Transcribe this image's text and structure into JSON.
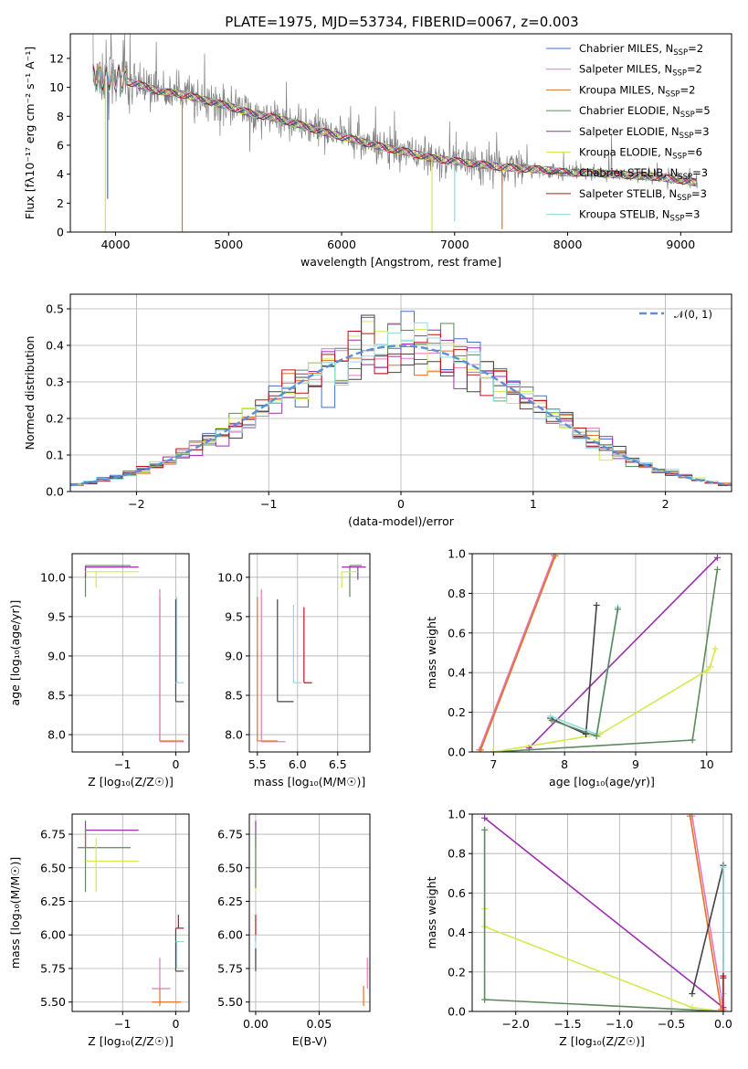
{
  "figure": {
    "title": "PLATE=1975, MJD=53734, FIBERID=0067, z=0.003"
  },
  "colors": {
    "chabrier_miles": "#4472c4",
    "salpeter_miles": "#e377c2",
    "kroupa_miles": "#e37222",
    "chabrier_elodie": "#5c8a5c",
    "salpeter_elodie": "#9b2fae",
    "kroupa_elodie": "#d4e94a",
    "chabrier_stelib": "#444444",
    "salpeter_stelib": "#c0101a",
    "kroupa_stelib": "#8fdce0",
    "data": "#808080",
    "normal": "#5b8fd6"
  },
  "chart_data": [
    {
      "id": "spectrum",
      "type": "line",
      "title": "PLATE=1975, MJD=53734, FIBERID=0067, z=0.003",
      "xlabel": "wavelength [Angstrom, rest frame]",
      "ylabel": "Flux [fλ10⁻¹⁷ erg cm⁻² s⁻¹ A⁻¹]",
      "xlim": [
        3600,
        9450
      ],
      "ylim": [
        0,
        13.7
      ],
      "xticks": [
        4000,
        5000,
        6000,
        7000,
        8000,
        9000
      ],
      "yticks": [
        0,
        2,
        4,
        6,
        8,
        10,
        12
      ],
      "grid": false,
      "legend_position": "top-right",
      "legend": [
        {
          "base": "Chabrier MILES, N",
          "sub": "SSP",
          "tail": "=2",
          "color": "chabrier_miles"
        },
        {
          "base": "Salpeter MILES, N",
          "sub": "SSP",
          "tail": "=2",
          "color": "salpeter_miles"
        },
        {
          "base": "Kroupa MILES, N",
          "sub": "SSP",
          "tail": "=2",
          "color": "kroupa_miles"
        },
        {
          "base": "Chabrier ELODIE, N",
          "sub": "SSP",
          "tail": "=5",
          "color": "chabrier_elodie"
        },
        {
          "base": "Salpeter ELODIE, N",
          "sub": "SSP",
          "tail": "=3",
          "color": "salpeter_elodie"
        },
        {
          "base": "Kroupa ELODIE, N",
          "sub": "SSP",
          "tail": "=6",
          "color": "kroupa_elodie"
        },
        {
          "base": "Chabrier STELIB, N",
          "sub": "SSP",
          "tail": "=3",
          "color": "chabrier_stelib"
        },
        {
          "base": "Salpeter STELIB, N",
          "sub": "SSP",
          "tail": "=3",
          "color": "salpeter_stelib"
        },
        {
          "base": "Kroupa STELIB, N",
          "sub": "SSP",
          "tail": "=3",
          "color": "kroupa_stelib"
        }
      ],
      "continuum": [
        [
          3800,
          10.6
        ],
        [
          3900,
          10.8
        ],
        [
          4000,
          10.6
        ],
        [
          4200,
          10.2
        ],
        [
          4400,
          9.7
        ],
        [
          4600,
          9.5
        ],
        [
          4800,
          9.1
        ],
        [
          5000,
          8.7
        ],
        [
          5200,
          8.2
        ],
        [
          5400,
          7.9
        ],
        [
          5600,
          7.5
        ],
        [
          5800,
          7.0
        ],
        [
          6000,
          6.6
        ],
        [
          6200,
          6.2
        ],
        [
          6400,
          5.8
        ],
        [
          6600,
          5.5
        ],
        [
          6800,
          5.1
        ],
        [
          7000,
          4.9
        ],
        [
          7200,
          4.7
        ],
        [
          7400,
          4.5
        ],
        [
          7600,
          4.4
        ],
        [
          7800,
          4.3
        ],
        [
          8000,
          4.1
        ],
        [
          8200,
          4.1
        ],
        [
          8400,
          4.0
        ],
        [
          8600,
          3.9
        ],
        [
          8800,
          3.8
        ],
        [
          9000,
          3.6
        ],
        [
          9150,
          3.4
        ]
      ],
      "spikes": [
        {
          "x": 3910,
          "y": 0,
          "color": "kroupa_elodie"
        },
        {
          "x": 3930,
          "y": 2.3,
          "color": "chabrier_miles"
        },
        {
          "x": 4590,
          "y": 0,
          "color": "kroupa_miles"
        },
        {
          "x": 6800,
          "y": 0,
          "color": "kroupa_elodie"
        },
        {
          "x": 7000,
          "y": 0.7,
          "color": "kroupa_stelib"
        },
        {
          "x": 7420,
          "y": 0.2,
          "color": "kroupa_miles"
        }
      ]
    },
    {
      "id": "residuals",
      "type": "bar",
      "xlabel": "(data-model)/error",
      "ylabel": "Normed distribution",
      "xlim": [
        -2.5,
        2.5
      ],
      "ylim": [
        0,
        0.54
      ],
      "xticks": [
        -2,
        -1,
        0,
        1,
        2
      ],
      "xtick_labels": [
        "−2",
        "−1",
        "0",
        "1",
        "2"
      ],
      "yticks": [
        0,
        0.1,
        0.2,
        0.3,
        0.4,
        0.5
      ],
      "ytick_labels": [
        "0.0",
        "0.1",
        "0.2",
        "0.3",
        "0.4",
        "0.5"
      ],
      "grid": true,
      "legend_position": "top-right",
      "legend_label": "𝒩(0, 1)",
      "bin_width": 0.1,
      "normal": {
        "mu": 0,
        "sigma": 1
      },
      "series_colors": [
        "chabrier_miles",
        "salpeter_miles",
        "kroupa_miles",
        "chabrier_elodie",
        "salpeter_elodie",
        "kroupa_elodie",
        "chabrier_stelib",
        "salpeter_stelib",
        "kroupa_stelib"
      ]
    },
    {
      "id": "age_vs_Z",
      "type": "scatter",
      "xlabel": "Z [log₁₀(Z/Z☉)]",
      "ylabel": "age  [log₁₀(age/yr)]",
      "xlim": [
        -1.95,
        0.25
      ],
      "ylim": [
        7.78,
        10.3
      ],
      "xticks": [
        -1,
        0
      ],
      "xtick_labels": [
        "−1",
        "0"
      ],
      "yticks": [
        8.0,
        8.5,
        9.0,
        9.5,
        10.0
      ],
      "ytick_labels": [
        "8.0",
        "8.5",
        "9.0",
        "9.5",
        "10.0"
      ],
      "grid": true,
      "errorbars": [
        {
          "x": -1.7,
          "y": 10.15,
          "x0": -1.7,
          "x1": -0.85,
          "y0": 9.75,
          "y1": 10.15,
          "color": "chabrier_elodie"
        },
        {
          "x": -1.7,
          "y": 10.13,
          "x0": -1.7,
          "x1": -0.7,
          "y0": 10.0,
          "y1": 10.13,
          "color": "salpeter_elodie"
        },
        {
          "x": -1.5,
          "y": 10.07,
          "x0": -1.7,
          "x1": -0.7,
          "y0": 9.87,
          "y1": 10.07,
          "color": "kroupa_elodie"
        },
        {
          "x": -0.3,
          "y": 7.92,
          "x0": -0.3,
          "x1": 0.15,
          "y0": 7.92,
          "y1": 9.75,
          "color": "kroupa_miles"
        },
        {
          "x": -0.3,
          "y": 7.91,
          "x0": -0.3,
          "x1": 0.15,
          "y0": 7.91,
          "y1": 9.85,
          "color": "salpeter_miles"
        },
        {
          "x": 0.0,
          "y": 8.42,
          "x0": 0.0,
          "x1": 0.15,
          "y0": 8.42,
          "y1": 9.72,
          "color": "chabrier_stelib"
        },
        {
          "x": 0.02,
          "y": 8.66,
          "x0": 0.0,
          "x1": 0.15,
          "y0": 8.66,
          "y1": 9.75,
          "color": "kroupa_stelib"
        }
      ]
    },
    {
      "id": "age_vs_mass",
      "type": "scatter",
      "xlabel": "mass [log₁₀(M/M☉)]",
      "ylabel": "",
      "xlim": [
        5.4,
        6.9
      ],
      "ylim": [
        7.78,
        10.3
      ],
      "xticks": [
        5.5,
        6.0,
        6.5
      ],
      "xtick_labels": [
        "5.5",
        "6.0",
        "6.5"
      ],
      "yticks": [
        8.0,
        8.5,
        9.0,
        9.5,
        10.0
      ],
      "ytick_labels": [
        "8.0",
        "8.5",
        "9.0",
        "9.5",
        "10.0"
      ],
      "grid": true,
      "errorbars": [
        {
          "x": 6.65,
          "y": 10.15,
          "x0": 6.65,
          "x1": 6.8,
          "y0": 9.75,
          "y1": 10.15,
          "color": "chabrier_elodie"
        },
        {
          "x": 6.75,
          "y": 10.13,
          "x0": 6.55,
          "x1": 6.85,
          "y0": 9.97,
          "y1": 10.13,
          "color": "salpeter_elodie"
        },
        {
          "x": 6.55,
          "y": 10.07,
          "x0": 6.55,
          "x1": 6.75,
          "y0": 9.87,
          "y1": 10.07,
          "color": "kroupa_elodie"
        },
        {
          "x": 5.5,
          "y": 7.92,
          "x0": 5.5,
          "x1": 5.75,
          "y0": 7.92,
          "y1": 9.75,
          "color": "kroupa_miles"
        },
        {
          "x": 5.55,
          "y": 7.91,
          "x0": 5.55,
          "x1": 5.85,
          "y0": 7.91,
          "y1": 9.85,
          "color": "salpeter_miles"
        },
        {
          "x": 5.75,
          "y": 8.42,
          "x0": 5.75,
          "x1": 5.95,
          "y0": 8.42,
          "y1": 9.72,
          "color": "chabrier_stelib"
        },
        {
          "x": 5.95,
          "y": 8.66,
          "x0": 5.95,
          "x1": 6.05,
          "y0": 8.66,
          "y1": 9.65,
          "color": "kroupa_stelib"
        },
        {
          "x": 6.08,
          "y": 8.66,
          "x0": 6.08,
          "x1": 6.18,
          "y0": 8.66,
          "y1": 9.62,
          "color": "salpeter_stelib"
        }
      ]
    },
    {
      "id": "weight_vs_age",
      "type": "line",
      "xlabel": "age  [log₁₀(age/yr)]",
      "ylabel": "mass weight",
      "xlim": [
        6.7,
        10.35
      ],
      "ylim": [
        0,
        1.0
      ],
      "xticks": [
        7,
        8,
        9,
        10
      ],
      "xtick_labels": [
        "7",
        "8",
        "9",
        "10"
      ],
      "yticks": [
        0,
        0.2,
        0.4,
        0.6,
        0.8,
        1.0
      ],
      "ytick_labels": [
        "0.0",
        "0.2",
        "0.4",
        "0.6",
        "0.8",
        "1.0"
      ],
      "grid": true,
      "series": [
        {
          "color": "salpeter_miles",
          "points": [
            [
              6.8,
              0.01
            ],
            [
              7.85,
              0.99
            ]
          ]
        },
        {
          "color": "kroupa_miles",
          "points": [
            [
              6.82,
              0.01
            ],
            [
              7.87,
              0.99
            ]
          ]
        },
        {
          "color": "salpeter_elodie",
          "points": [
            [
              7.5,
              0.02
            ],
            [
              10.15,
              0.98
            ]
          ]
        },
        {
          "color": "chabrier_elodie",
          "points": [
            [
              7.0,
              0.0
            ],
            [
              9.8,
              0.06
            ],
            [
              10.15,
              0.92
            ]
          ]
        },
        {
          "color": "kroupa_elodie",
          "points": [
            [
              7.0,
              0.0
            ],
            [
              8.5,
              0.09
            ],
            [
              10.0,
              0.41
            ],
            [
              10.05,
              0.43
            ],
            [
              10.12,
              0.52
            ]
          ]
        },
        {
          "color": "chabrier_stelib",
          "points": [
            [
              8.3,
              0.09
            ],
            [
              8.45,
              0.74
            ]
          ]
        },
        {
          "color": "chabrier_stelib",
          "points": [
            [
              7.8,
              0.17
            ],
            [
              8.3,
              0.09
            ]
          ]
        },
        {
          "color": "kroupa_stelib",
          "points": [
            [
              7.8,
              0.18
            ],
            [
              8.45,
              0.09
            ],
            [
              8.75,
              0.73
            ]
          ]
        },
        {
          "color": "chabrier_elodie",
          "points": [
            [
              7.82,
              0.16
            ],
            [
              8.45,
              0.08
            ],
            [
              8.75,
              0.72
            ]
          ]
        }
      ]
    },
    {
      "id": "mass_vs_Z",
      "type": "scatter",
      "xlabel": "Z [log₁₀(Z/Z☉)]",
      "ylabel": "mass [log₁₀(M/M☉)]",
      "xlim": [
        -1.95,
        0.25
      ],
      "ylim": [
        5.43,
        6.9
      ],
      "xticks": [
        -1,
        0
      ],
      "xtick_labels": [
        "−1",
        "0"
      ],
      "yticks": [
        5.5,
        5.75,
        6.0,
        6.25,
        6.5,
        6.75
      ],
      "ytick_labels": [
        "5.50",
        "5.75",
        "6.00",
        "6.25",
        "6.50",
        "6.75"
      ],
      "grid": true,
      "errorbars": [
        {
          "x": -1.7,
          "y": 6.78,
          "x0": -1.7,
          "x1": -0.7,
          "y0": 6.65,
          "y1": 6.85,
          "color": "salpeter_elodie"
        },
        {
          "x": -1.7,
          "y": 6.65,
          "x0": -1.85,
          "x1": -0.85,
          "y0": 6.32,
          "y1": 6.8,
          "color": "chabrier_elodie"
        },
        {
          "x": -1.5,
          "y": 6.55,
          "x0": -1.7,
          "x1": -0.7,
          "y0": 6.32,
          "y1": 6.72,
          "color": "kroupa_elodie"
        },
        {
          "x": -0.3,
          "y": 5.6,
          "x0": -0.45,
          "x1": -0.1,
          "y0": 5.6,
          "y1": 5.83,
          "color": "salpeter_miles"
        },
        {
          "x": -0.3,
          "y": 5.5,
          "x0": -0.45,
          "x1": 0.1,
          "y0": 5.47,
          "y1": 5.6,
          "color": "kroupa_miles"
        },
        {
          "x": 0.0,
          "y": 5.73,
          "x0": 0.0,
          "x1": 0.15,
          "y0": 5.73,
          "y1": 6.05,
          "color": "chabrier_stelib"
        },
        {
          "x": 0.02,
          "y": 5.95,
          "x0": 0.0,
          "x1": 0.15,
          "y0": 5.75,
          "y1": 5.95,
          "color": "kroupa_stelib"
        },
        {
          "x": 0.05,
          "y": 6.05,
          "x0": 0.0,
          "x1": 0.15,
          "y0": 6.05,
          "y1": 6.15,
          "color": "salpeter_stelib"
        }
      ]
    },
    {
      "id": "mass_vs_EBV",
      "type": "scatter",
      "xlabel": "E(B-V)",
      "ylabel": "",
      "xlim": [
        -0.005,
        0.09
      ],
      "ylim": [
        5.43,
        6.9
      ],
      "xticks": [
        0.0,
        0.05
      ],
      "xtick_labels": [
        "0.00",
        "0.05"
      ],
      "yticks": [
        5.5,
        5.75,
        6.0,
        6.25,
        6.5,
        6.75
      ],
      "ytick_labels": [
        "5.50",
        "5.75",
        "6.00",
        "6.25",
        "6.50",
        "6.75"
      ],
      "grid": true,
      "errorbars": [
        {
          "x": 0.0,
          "y": 6.78,
          "y0": 6.65,
          "y1": 6.85,
          "color": "salpeter_elodie"
        },
        {
          "x": 0.0,
          "y": 6.55,
          "y0": 6.32,
          "y1": 6.72,
          "color": "kroupa_elodie"
        },
        {
          "x": 0.0,
          "y": 6.65,
          "y0": 6.35,
          "y1": 6.75,
          "color": "chabrier_elodie"
        },
        {
          "x": 0.0,
          "y": 6.05,
          "y0": 5.95,
          "y1": 6.15,
          "color": "salpeter_stelib"
        },
        {
          "x": 0.0,
          "y": 5.9,
          "y0": 5.75,
          "y1": 6.0,
          "color": "kroupa_stelib"
        },
        {
          "x": 0.0,
          "y": 5.8,
          "y0": 5.73,
          "y1": 5.9,
          "color": "chabrier_stelib"
        },
        {
          "x": 0.088,
          "y": 5.7,
          "y0": 5.6,
          "y1": 5.83,
          "color": "salpeter_miles"
        },
        {
          "x": 0.085,
          "y": 5.5,
          "y0": 5.47,
          "y1": 5.62,
          "color": "kroupa_miles"
        }
      ]
    },
    {
      "id": "weight_vs_Z",
      "type": "line",
      "xlabel": "Z [log₁₀(Z/Z☉)]",
      "ylabel": "mass weight",
      "xlim": [
        -2.42,
        0.08
      ],
      "ylim": [
        0,
        1.0
      ],
      "xticks": [
        -2.0,
        -1.5,
        -1.0,
        -0.5,
        0.0
      ],
      "xtick_labels": [
        "−2.0",
        "−1.5",
        "−1.0",
        "−0.5",
        "0.0"
      ],
      "yticks": [
        0,
        0.2,
        0.4,
        0.6,
        0.8,
        1.0
      ],
      "ytick_labels": [
        "0.0",
        "0.2",
        "0.4",
        "0.6",
        "0.8",
        "1.0"
      ],
      "grid": true,
      "series": [
        {
          "color": "salpeter_elodie",
          "points": [
            [
              -2.3,
              0.98
            ],
            [
              0.0,
              0.02
            ]
          ]
        },
        {
          "color": "kroupa_elodie",
          "points": [
            [
              -2.3,
              0.52
            ],
            [
              -2.3,
              0.43
            ],
            [
              -0.3,
              0.02
            ],
            [
              0.0,
              0.0
            ]
          ]
        },
        {
          "color": "chabrier_elodie",
          "points": [
            [
              -2.3,
              0.92
            ],
            [
              -2.3,
              0.06
            ],
            [
              0.0,
              0.0
            ]
          ]
        },
        {
          "color": "salpeter_miles",
          "points": [
            [
              -0.3,
              0.99
            ],
            [
              0.0,
              0.01
            ]
          ]
        },
        {
          "color": "kroupa_miles",
          "points": [
            [
              -0.32,
              0.99
            ],
            [
              -0.02,
              0.01
            ]
          ]
        },
        {
          "color": "chabrier_stelib",
          "points": [
            [
              -0.3,
              0.09
            ],
            [
              0.0,
              0.74
            ],
            [
              0.0,
              0.17
            ]
          ]
        },
        {
          "color": "kroupa_stelib",
          "points": [
            [
              0.0,
              0.73
            ],
            [
              0.0,
              0.09
            ]
          ]
        },
        {
          "color": "salpeter_stelib",
          "points": [
            [
              0.0,
              0.18
            ],
            [
              0.0,
              0.0
            ]
          ]
        }
      ]
    }
  ]
}
